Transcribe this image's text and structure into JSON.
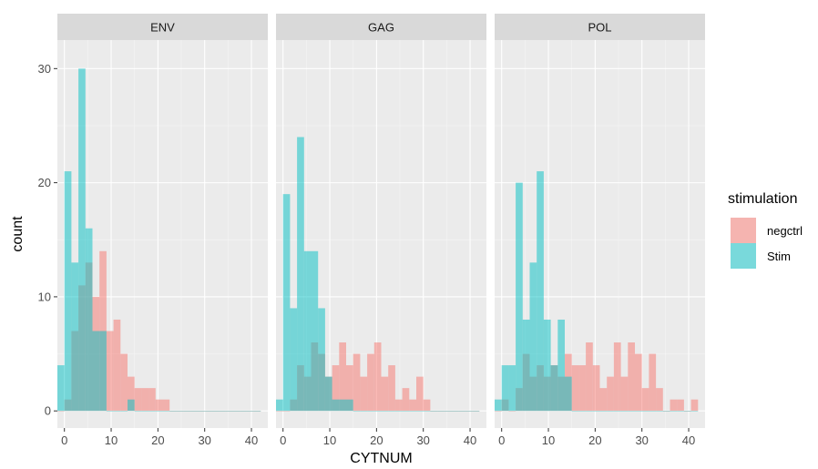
{
  "chart_data": {
    "type": "bar",
    "chart_kind": "faceted overlapping histogram",
    "xlabel": "CYTNUM",
    "ylabel": "count",
    "xlim": [
      -1.5,
      43.5
    ],
    "ylim": [
      -1.5,
      32.5
    ],
    "x_ticks": [
      0,
      10,
      20,
      30,
      40
    ],
    "y_ticks": [
      0,
      10,
      20,
      30
    ],
    "bin_width": 1.5,
    "grid": true,
    "legend": {
      "title": "stimulation",
      "position": "right",
      "entries": [
        "negctrl",
        "Stim"
      ]
    },
    "series_colors": {
      "negctrl": "#F8766D",
      "Stim": "#00BFC4"
    },
    "bar_alpha": 0.5,
    "facets": [
      {
        "label": "ENV",
        "series": [
          {
            "name": "negctrl",
            "x": [
              -0.75,
              0.75,
              2.25,
              3.75,
              5.25,
              6.75,
              8.25,
              9.75,
              11.25,
              12.75,
              14.25,
              15.75,
              17.25,
              18.75,
              20.25,
              21.75,
              23.25,
              24.75,
              26.25,
              27.75,
              29.25,
              30.75,
              32.25,
              33.75,
              35.25,
              36.75,
              38.25,
              39.75,
              41.25
            ],
            "values": [
              0,
              1,
              7,
              11,
              13,
              10,
              14,
              7,
              8,
              5,
              3,
              2,
              2,
              2,
              1,
              1,
              0,
              0,
              0,
              0,
              0,
              0,
              0,
              0,
              0,
              0,
              0,
              0,
              0
            ]
          },
          {
            "name": "Stim",
            "x": [
              -0.75,
              0.75,
              2.25,
              3.75,
              5.25,
              6.75,
              8.25,
              9.75,
              11.25,
              12.75,
              14.25,
              15.75,
              17.25,
              18.75,
              20.25,
              21.75,
              23.25,
              24.75,
              26.25,
              27.75,
              29.25,
              30.75,
              32.25,
              33.75,
              35.25,
              36.75,
              38.25,
              39.75,
              41.25
            ],
            "values": [
              4,
              21,
              13,
              30,
              16,
              7,
              7,
              0,
              0,
              0,
              1,
              0,
              0,
              0,
              0,
              0,
              0,
              0,
              0,
              0,
              0,
              0,
              0,
              0,
              0,
              0,
              0,
              0,
              0
            ]
          }
        ]
      },
      {
        "label": "GAG",
        "series": [
          {
            "name": "negctrl",
            "x": [
              -0.75,
              0.75,
              2.25,
              3.75,
              5.25,
              6.75,
              8.25,
              9.75,
              11.25,
              12.75,
              14.25,
              15.75,
              17.25,
              18.75,
              20.25,
              21.75,
              23.25,
              24.75,
              26.25,
              27.75,
              29.25,
              30.75,
              32.25,
              33.75,
              35.25,
              36.75,
              38.25,
              39.75,
              41.25
            ],
            "values": [
              0,
              0,
              1,
              4,
              3,
              6,
              5,
              3,
              4,
              6,
              4,
              5,
              3,
              5,
              6,
              3,
              4,
              1,
              2,
              1,
              3,
              1,
              0,
              0,
              0,
              0,
              0,
              0,
              0
            ]
          },
          {
            "name": "Stim",
            "x": [
              -0.75,
              0.75,
              2.25,
              3.75,
              5.25,
              6.75,
              8.25,
              9.75,
              11.25,
              12.75,
              14.25,
              15.75,
              17.25,
              18.75,
              20.25,
              21.75,
              23.25,
              24.75,
              26.25,
              27.75,
              29.25,
              30.75,
              32.25,
              33.75,
              35.25,
              36.75,
              38.25,
              39.75,
              41.25
            ],
            "values": [
              1,
              19,
              9,
              24,
              14,
              14,
              9,
              3,
              1,
              1,
              1,
              0,
              0,
              0,
              0,
              0,
              0,
              0,
              0,
              0,
              0,
              0,
              0,
              0,
              0,
              0,
              0,
              0,
              0
            ]
          }
        ]
      },
      {
        "label": "POL",
        "series": [
          {
            "name": "negctrl",
            "x": [
              -0.75,
              0.75,
              2.25,
              3.75,
              5.25,
              6.75,
              8.25,
              9.75,
              11.25,
              12.75,
              14.25,
              15.75,
              17.25,
              18.75,
              20.25,
              21.75,
              23.25,
              24.75,
              26.25,
              27.75,
              29.25,
              30.75,
              32.25,
              33.75,
              35.25,
              36.75,
              38.25,
              39.75,
              41.25
            ],
            "values": [
              0,
              1,
              0,
              2,
              5,
              3,
              4,
              3,
              4,
              3,
              5,
              4,
              4,
              6,
              4,
              2,
              3,
              6,
              3,
              6,
              5,
              2,
              5,
              2,
              0,
              1,
              1,
              0,
              1
            ]
          },
          {
            "name": "Stim",
            "x": [
              -0.75,
              0.75,
              2.25,
              3.75,
              5.25,
              6.75,
              8.25,
              9.75,
              11.25,
              12.75,
              14.25,
              15.75,
              17.25,
              18.75,
              20.25,
              21.75,
              23.25,
              24.75,
              26.25,
              27.75,
              29.25,
              30.75,
              32.25,
              33.75,
              35.25,
              36.75,
              38.25,
              39.75,
              41.25
            ],
            "values": [
              1,
              4,
              4,
              20,
              8,
              13,
              21,
              8,
              4,
              8,
              3,
              0,
              0,
              0,
              0,
              0,
              0,
              0,
              0,
              0,
              0,
              0,
              0,
              0,
              0,
              0,
              0,
              0,
              0
            ]
          }
        ]
      }
    ]
  }
}
